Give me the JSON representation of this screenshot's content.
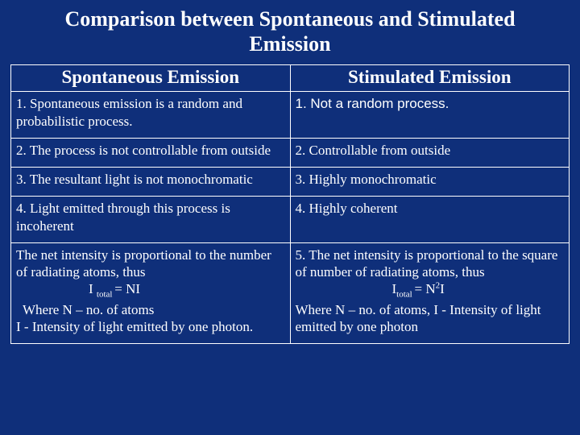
{
  "title": "Comparison between Spontaneous and Stimulated Emission",
  "columns": {
    "left": "Spontaneous Emission",
    "right": "Stimulated Emission"
  },
  "rows": [
    {
      "left": "1. Spontaneous emission is a random and probabilistic  process.",
      "right": "1. Not a random process."
    },
    {
      "left": "2. The process is not controllable from outside",
      "right": "2. Controllable from outside"
    },
    {
      "left": "3. The resultant light is not monochromatic",
      "right": "3. Highly monochromatic"
    },
    {
      "left": "4. Light emitted through this process is incoherent",
      "right": "4. Highly coherent"
    }
  ],
  "row5": {
    "left_line1": "The net intensity is proportional to the number of radiating atoms, thus",
    "left_eq_pre": "I ",
    "left_eq_sub": "total ",
    "left_eq_post": "= NI",
    "left_line3": " Where N – no. of atoms",
    "left_line4": "  I  - Intensity of light emitted by one photon.",
    "right_line1": "5. The net intensity is proportional to the square of number of radiating atoms, thus",
    "right_eq_pre": "I",
    "right_eq_sub": "total ",
    "right_eq_mid": "= N",
    "right_eq_sup": "2",
    "right_eq_post": "I",
    "right_line3": "  Where N – no. of atoms, I  - Intensity of light emitted by one photon"
  },
  "style": {
    "background": "#0f2f7a",
    "text_color": "#ffffff",
    "border_color": "#ffffff",
    "title_fontsize": 26,
    "header_fontsize": 23,
    "cell_fontsize": 17
  }
}
